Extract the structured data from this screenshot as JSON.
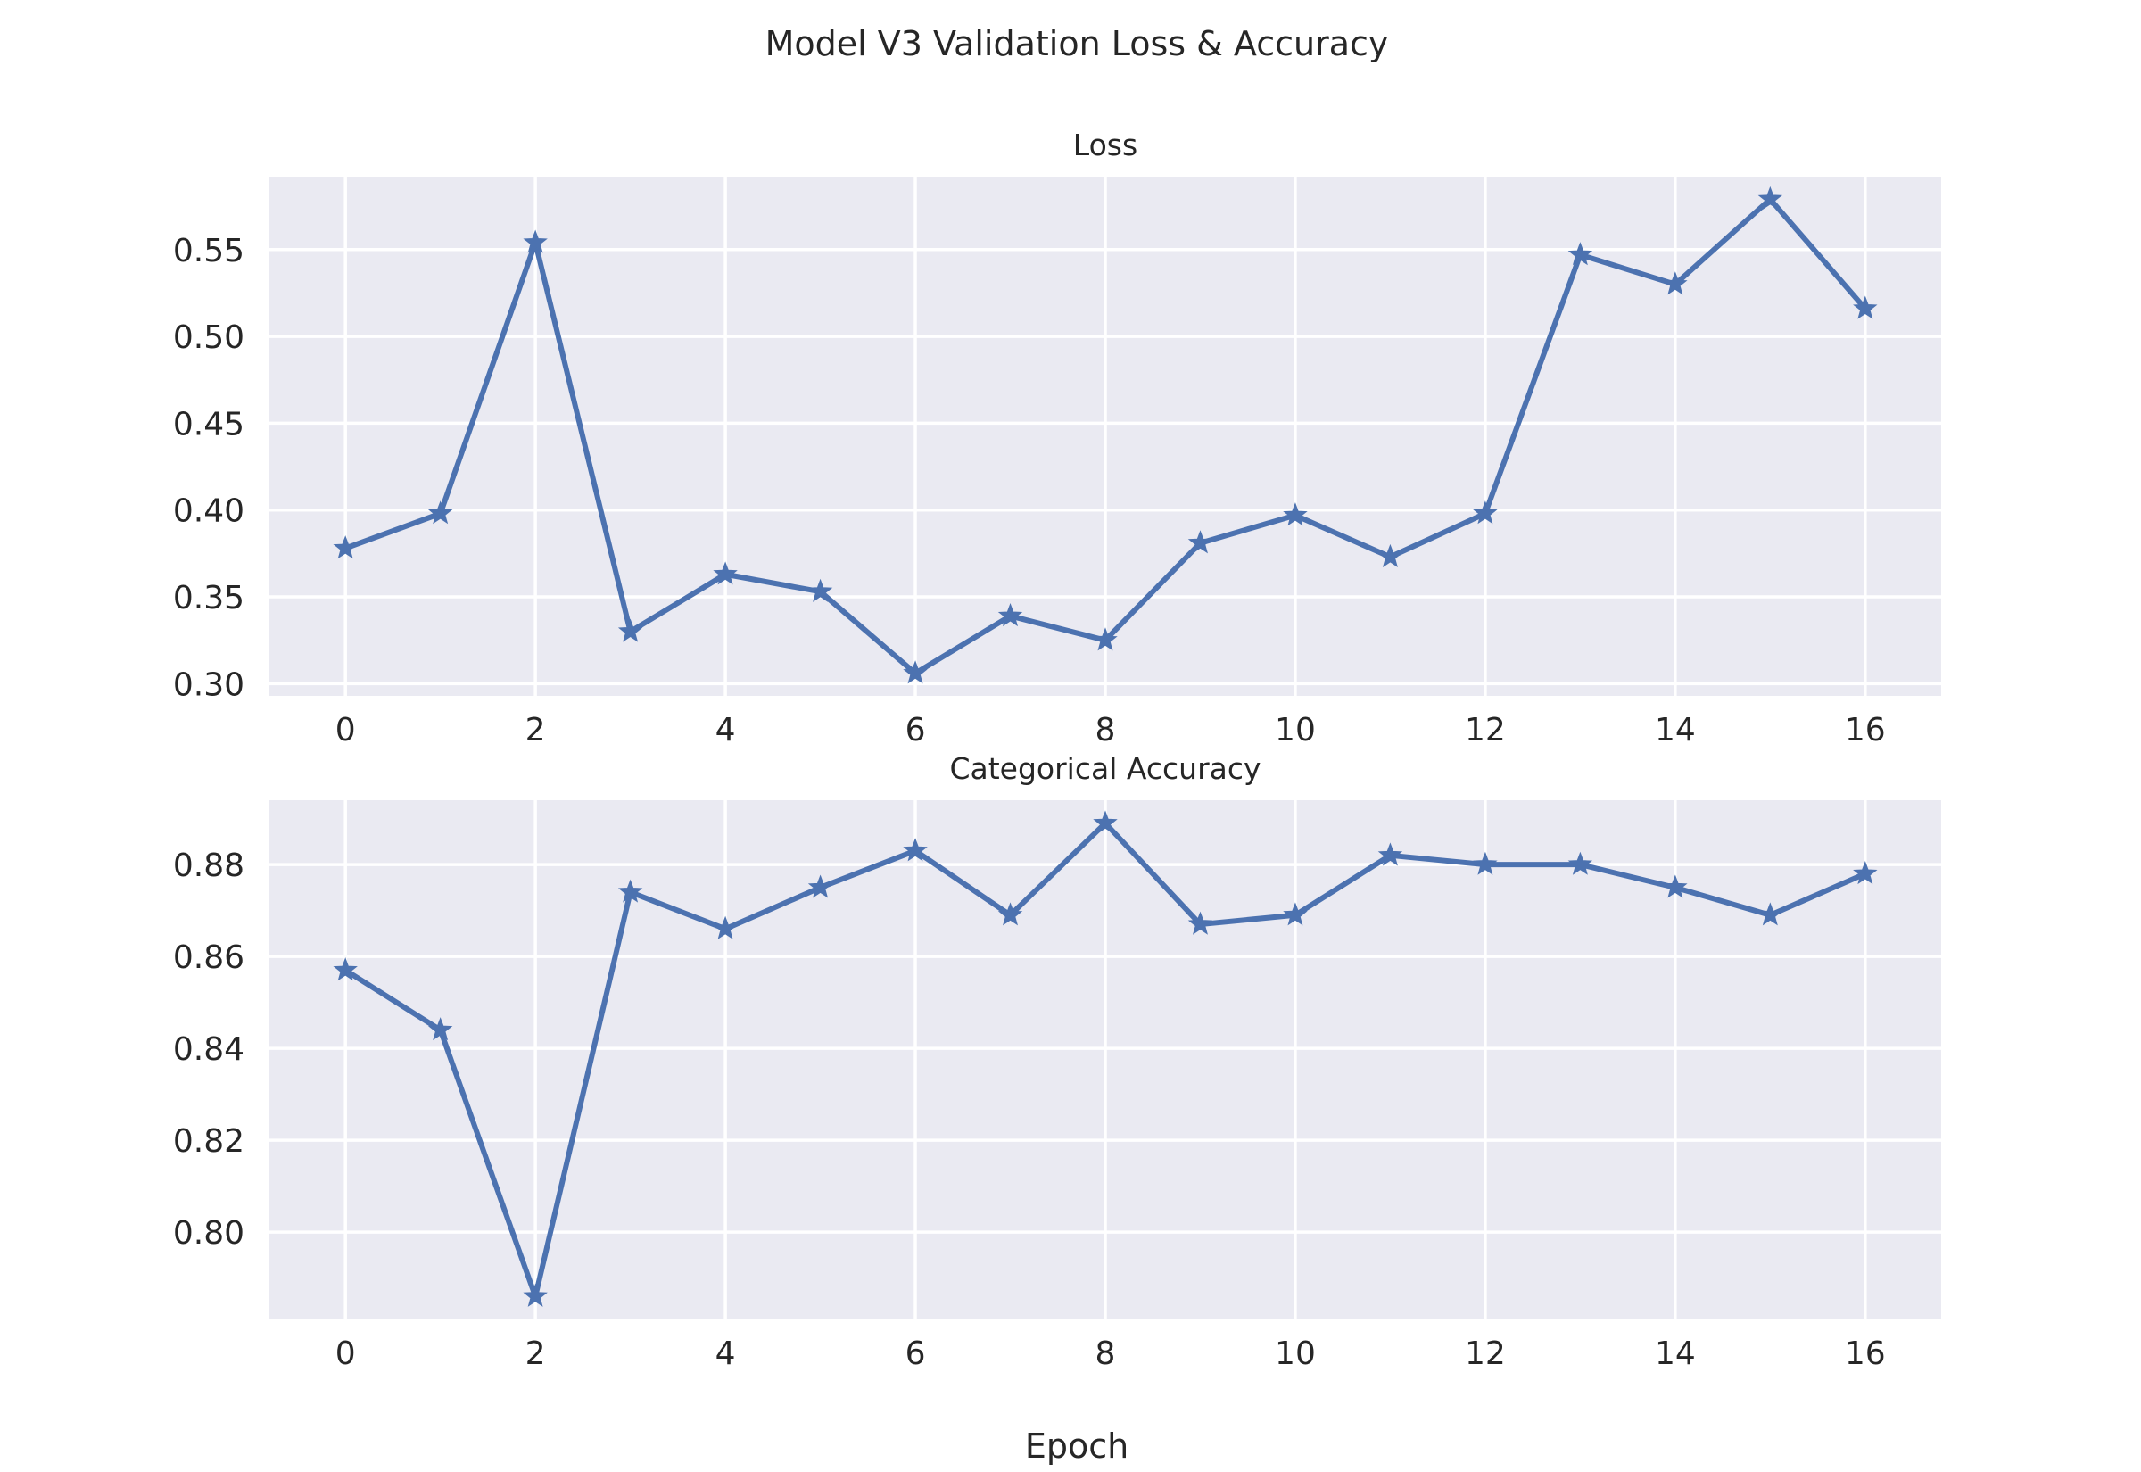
{
  "chart_data": {
    "type": "line",
    "title": "Model V3 Validation Loss & Accuracy",
    "xlabel": "Epoch",
    "series_color": "#4c72b0",
    "background_color": "#eaeaf2",
    "marker": "star",
    "grid": true,
    "subplots": [
      {
        "title": "Loss",
        "x": [
          0,
          1,
          2,
          3,
          4,
          5,
          6,
          7,
          8,
          9,
          10,
          11,
          12,
          13,
          14,
          15,
          16
        ],
        "y": [
          0.378,
          0.398,
          0.554,
          0.33,
          0.363,
          0.353,
          0.306,
          0.339,
          0.325,
          0.381,
          0.397,
          0.373,
          0.398,
          0.547,
          0.53,
          0.579,
          0.516
        ],
        "xlim": [
          -0.8,
          16.8
        ],
        "ylim": [
          0.293,
          0.592
        ],
        "xticks": [
          0,
          2,
          4,
          6,
          8,
          10,
          12,
          14,
          16
        ],
        "xtick_labels": [
          "0",
          "2",
          "4",
          "6",
          "8",
          "10",
          "12",
          "14",
          "16"
        ],
        "yticks": [
          0.3,
          0.35,
          0.4,
          0.45,
          0.5,
          0.55
        ],
        "ytick_labels": [
          "0.30",
          "0.35",
          "0.40",
          "0.45",
          "0.50",
          "0.55"
        ]
      },
      {
        "title": "Categorical Accuracy",
        "x": [
          0,
          1,
          2,
          3,
          4,
          5,
          6,
          7,
          8,
          9,
          10,
          11,
          12,
          13,
          14,
          15,
          16
        ],
        "y": [
          0.857,
          0.844,
          0.786,
          0.874,
          0.866,
          0.875,
          0.883,
          0.869,
          0.889,
          0.867,
          0.869,
          0.882,
          0.88,
          0.88,
          0.875,
          0.869,
          0.878
        ],
        "xlim": [
          -0.8,
          16.8
        ],
        "ylim": [
          0.781,
          0.894
        ],
        "xticks": [
          0,
          2,
          4,
          6,
          8,
          10,
          12,
          14,
          16
        ],
        "xtick_labels": [
          "0",
          "2",
          "4",
          "6",
          "8",
          "10",
          "12",
          "14",
          "16"
        ],
        "yticks": [
          0.8,
          0.82,
          0.84,
          0.86,
          0.88
        ],
        "ytick_labels": [
          "0.80",
          "0.82",
          "0.84",
          "0.86",
          "0.88"
        ]
      }
    ]
  }
}
